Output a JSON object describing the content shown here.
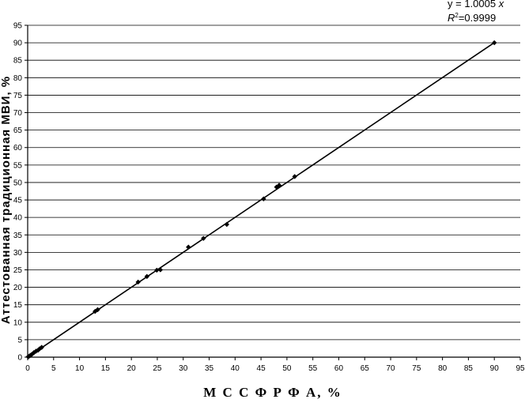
{
  "chart_data": {
    "type": "scatter",
    "title": "",
    "xlabel": "М С С Ф  Р Ф А, %",
    "ylabel": "Аттестованная традиционная МВИ, %",
    "xlim": [
      0,
      95
    ],
    "ylim": [
      0,
      95
    ],
    "xticks": [
      "0",
      "5",
      "10",
      "15",
      "20",
      "25",
      "30",
      "35",
      "40",
      "45",
      "50",
      "55",
      "60",
      "65",
      "70",
      "75",
      "80",
      "85",
      "90",
      "95"
    ],
    "yticks": [
      "0",
      "5",
      "10",
      "15",
      "20",
      "25",
      "30",
      "35",
      "40",
      "45",
      "50",
      "55",
      "60",
      "65",
      "70",
      "75",
      "80",
      "85",
      "90",
      "95"
    ],
    "grid": "horizontal",
    "trendline": {
      "slope": 1.0005,
      "equation_prefix": "y = 1.0005 ",
      "equation_var": "x",
      "r2_prefix": "R",
      "r2_exp": "2",
      "r2_value": "=0.9999"
    },
    "series": [
      {
        "x": [
          0.1,
          0.3,
          0.5,
          0.8,
          1.2,
          1.6,
          2.0,
          2.3,
          2.7,
          13.0,
          13.5,
          21.3,
          23.0,
          24.9,
          25.6,
          31.0,
          33.9,
          38.4,
          45.5,
          48.0,
          48.5,
          51.5,
          90.0
        ],
        "y": [
          0.1,
          0.3,
          0.5,
          0.8,
          1.3,
          1.7,
          2.0,
          2.4,
          2.8,
          13.1,
          13.6,
          21.5,
          23.1,
          24.9,
          25.0,
          31.5,
          34.0,
          38.0,
          45.3,
          48.7,
          49.2,
          51.7,
          90.0
        ]
      }
    ]
  }
}
